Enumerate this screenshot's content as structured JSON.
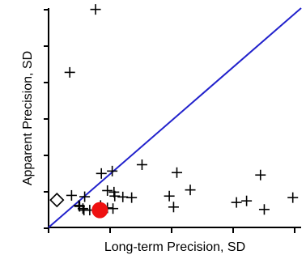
{
  "chart_data": {
    "type": "scatter",
    "title": "",
    "xlabel": "Long-term Precision, SD",
    "ylabel": "Apparent Precision, SD",
    "xlim": [
      0,
      100
    ],
    "ylim": [
      0,
      100
    ],
    "grid": false,
    "tick_labels": false,
    "identity_line": {
      "color": "#2222cc",
      "points": [
        [
          0,
          0
        ],
        [
          100,
          100
        ]
      ]
    },
    "series": [
      {
        "marker": "plus",
        "color": "#000000",
        "points": [
          [
            18.6,
            99.4
          ],
          [
            8.4,
            70.7
          ],
          [
            20.9,
            24.6
          ],
          [
            25.2,
            25.7
          ],
          [
            37.0,
            28.6
          ],
          [
            50.8,
            25.0
          ],
          [
            83.9,
            23.9
          ],
          [
            9.1,
            14.6
          ],
          [
            14.3,
            14.0
          ],
          [
            23.3,
            16.8
          ],
          [
            25.9,
            16.1
          ],
          [
            26.2,
            14.3
          ],
          [
            29.4,
            13.9
          ],
          [
            32.9,
            13.6
          ],
          [
            47.8,
            14.3
          ],
          [
            56.1,
            17.1
          ],
          [
            96.7,
            13.6
          ],
          [
            12.0,
            10.0
          ],
          [
            12.3,
            9.6
          ],
          [
            13.6,
            8.6
          ],
          [
            14.0,
            7.9
          ],
          [
            16.3,
            7.9
          ],
          [
            20.6,
            10.0
          ],
          [
            23.3,
            8.9
          ],
          [
            25.5,
            8.6
          ],
          [
            49.5,
            9.3
          ],
          [
            74.4,
            11.4
          ],
          [
            78.4,
            12.1
          ],
          [
            85.4,
            8.2
          ]
        ]
      },
      {
        "marker": "diamond",
        "color": "#000000",
        "points": [
          [
            3.3,
            12.5
          ]
        ]
      },
      {
        "marker": "circle",
        "color": "#ee1111",
        "points": [
          [
            20.3,
            7.9
          ]
        ]
      }
    ]
  }
}
